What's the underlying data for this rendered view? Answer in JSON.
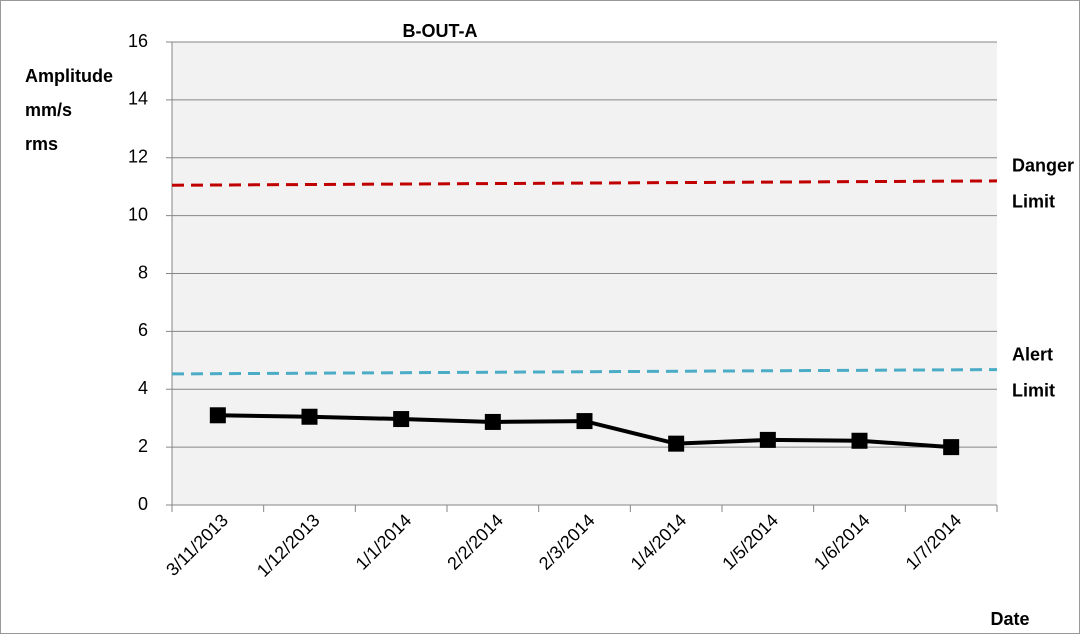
{
  "chart_data": {
    "type": "line",
    "title": "B-OUT-A",
    "y_label": [
      "Amplitude",
      "mm/s",
      "rms"
    ],
    "x_label": "Date",
    "categories": [
      "3/11/2013",
      "1/12/2013",
      "1/1/2014",
      "2/2/2014",
      "2/3/2014",
      "1/4/2014",
      "1/5/2014",
      "1/6/2014",
      "1/7/2014"
    ],
    "series": [
      {
        "color": "#000000",
        "values": [
          3.1,
          3.05,
          2.97,
          2.87,
          2.9,
          2.12,
          2.25,
          2.22,
          2.0
        ]
      }
    ],
    "reference_lines": [
      {
        "label": [
          "Danger",
          "Limit"
        ],
        "color": "#c00000",
        "label_color": "#e00000",
        "values": [
          11.05,
          11.2
        ]
      },
      {
        "label": [
          "Alert",
          "Limit"
        ],
        "color": "#4bacc6",
        "label_color": "#5b8fd5",
        "values": [
          4.53,
          4.68
        ]
      }
    ],
    "ylim": [
      0,
      16
    ],
    "yticks": [
      0,
      2,
      4,
      6,
      8,
      10,
      12,
      14,
      16
    ],
    "grid": true
  }
}
